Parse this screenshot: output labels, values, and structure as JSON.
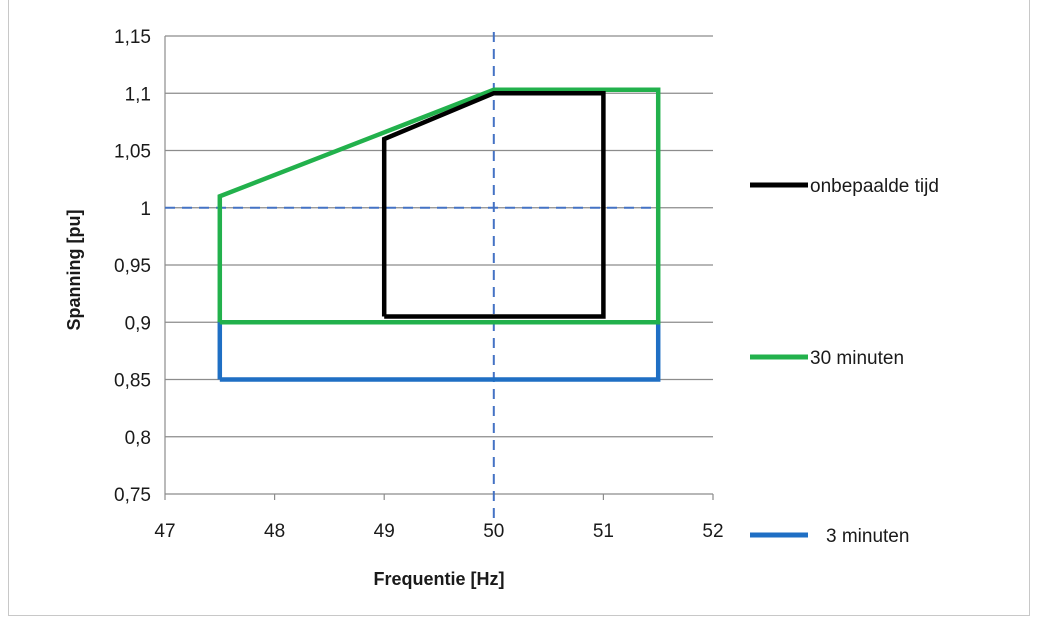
{
  "chart_data": {
    "type": "line",
    "title": "",
    "xlabel": "Frequentie [Hz]",
    "ylabel": "Spanning [pu]",
    "xlim": [
      47,
      52
    ],
    "ylim": [
      0.75,
      1.15
    ],
    "x_ticks": [
      47,
      48,
      49,
      50,
      51,
      52
    ],
    "x_tick_labels": [
      "47",
      "48",
      "49",
      "50",
      "51",
      "52"
    ],
    "y_ticks": [
      0.75,
      0.8,
      0.85,
      0.9,
      0.95,
      1.0,
      1.05,
      1.1,
      1.15
    ],
    "y_tick_labels": [
      "0,75",
      "0,8",
      "0,85",
      "0,9",
      "0,95",
      "1",
      "1,05",
      "1,1",
      "1,15"
    ],
    "grid": "horizontal",
    "legend_position": "right",
    "reference_lines": [
      {
        "orientation": "horizontal",
        "value": 1.0,
        "color": "#4472c4",
        "style": "dashed"
      },
      {
        "orientation": "vertical",
        "value": 50,
        "color": "#4472c4",
        "style": "dashed"
      }
    ],
    "series": [
      {
        "name": "onbepaalde tijd",
        "color": "#000000",
        "points": [
          [
            49,
            0.905
          ],
          [
            49,
            1.06
          ],
          [
            50,
            1.1
          ],
          [
            51,
            1.1
          ],
          [
            51,
            0.905
          ],
          [
            49,
            0.905
          ]
        ]
      },
      {
        "name": "30 minuten",
        "color": "#22b14c",
        "points": [
          [
            47.5,
            0.9
          ],
          [
            47.5,
            1.01
          ],
          [
            50,
            1.103
          ],
          [
            51.5,
            1.103
          ],
          [
            51.5,
            0.9
          ],
          [
            47.5,
            0.9
          ]
        ]
      },
      {
        "name": "3 minuten",
        "color": "#1f6fc4",
        "points": [
          [
            47.5,
            0.85
          ],
          [
            47.5,
            0.9
          ],
          [
            51.5,
            0.9
          ],
          [
            51.5,
            0.85
          ],
          [
            47.5,
            0.85
          ]
        ]
      }
    ]
  }
}
